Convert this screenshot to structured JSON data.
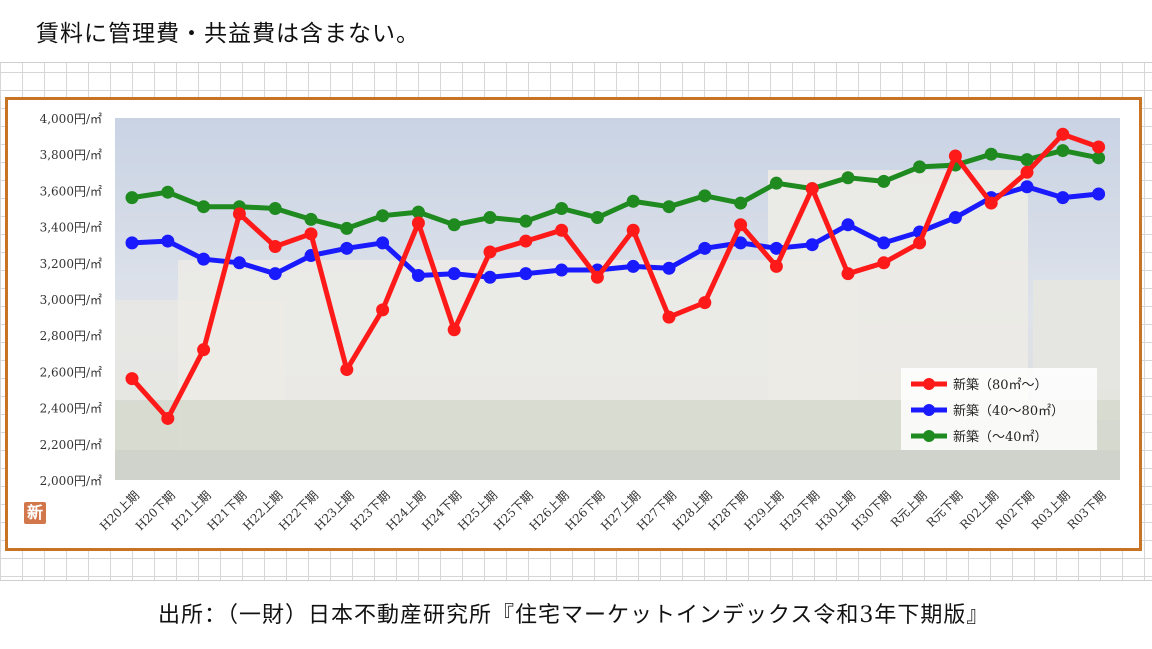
{
  "header": {
    "note": "賃料に管理費・共益費は含まない。"
  },
  "footer": {
    "source": "出所：（一財）日本不動産研究所『住宅マーケットインデックス令和3年下期版』"
  },
  "logo": {
    "label": "新"
  },
  "colors": {
    "frame": "#c77426",
    "red": "#ff1a1a",
    "blue": "#1a1aff",
    "green": "#1f8a1f"
  },
  "chart_data": {
    "type": "line",
    "title": "",
    "xlabel": "",
    "ylabel": "",
    "ylim": [
      2000,
      4000
    ],
    "y_ticks": [
      2000,
      2200,
      2400,
      2600,
      2800,
      3000,
      3200,
      3400,
      3600,
      3800,
      4000
    ],
    "y_tick_labels": [
      "2,000円/㎡",
      "2,200円/㎡",
      "2,400円/㎡",
      "2,600円/㎡",
      "2,800円/㎡",
      "3,000円/㎡",
      "3,200円/㎡",
      "3,400円/㎡",
      "3,600円/㎡",
      "3,800円/㎡",
      "4,000円/㎡"
    ],
    "categories": [
      "H20上期",
      "H20下期",
      "H21上期",
      "H21下期",
      "H22上期",
      "H22下期",
      "H23上期",
      "H23下期",
      "H24上期",
      "H24下期",
      "H25上期",
      "H25下期",
      "H26上期",
      "H26下期",
      "H27上期",
      "H27下期",
      "H28上期",
      "H28下期",
      "H29上期",
      "H29下期",
      "H30上期",
      "H30下期",
      "R元上期",
      "R元下期",
      "R02上期",
      "R02下期",
      "R03上期",
      "R03下期"
    ],
    "grid": false,
    "legend_position": "bottom-right",
    "series": [
      {
        "name": "新築（80㎡～）",
        "color": "#ff1a1a",
        "values": [
          2560,
          2340,
          2720,
          3470,
          3290,
          3360,
          2610,
          2940,
          3420,
          2830,
          3260,
          3320,
          3380,
          3120,
          3380,
          2900,
          2980,
          3410,
          3180,
          3610,
          3140,
          3200,
          3310,
          3790,
          3530,
          3700,
          3910,
          3840
        ]
      },
      {
        "name": "新築（40～80㎡）",
        "color": "#1a1aff",
        "values": [
          3310,
          3320,
          3220,
          3200,
          3140,
          3240,
          3280,
          3310,
          3130,
          3140,
          3120,
          3140,
          3160,
          3160,
          3180,
          3170,
          3280,
          3310,
          3280,
          3300,
          3410,
          3310,
          3370,
          3450,
          3560,
          3620,
          3560,
          3580
        ]
      },
      {
        "name": "新築（～40㎡）",
        "color": "#1f8a1f",
        "values": [
          3560,
          3590,
          3510,
          3510,
          3500,
          3440,
          3390,
          3460,
          3480,
          3410,
          3450,
          3430,
          3500,
          3450,
          3540,
          3510,
          3570,
          3530,
          3640,
          3610,
          3670,
          3650,
          3730,
          3740,
          3800,
          3770,
          3820,
          3780
        ]
      }
    ]
  }
}
